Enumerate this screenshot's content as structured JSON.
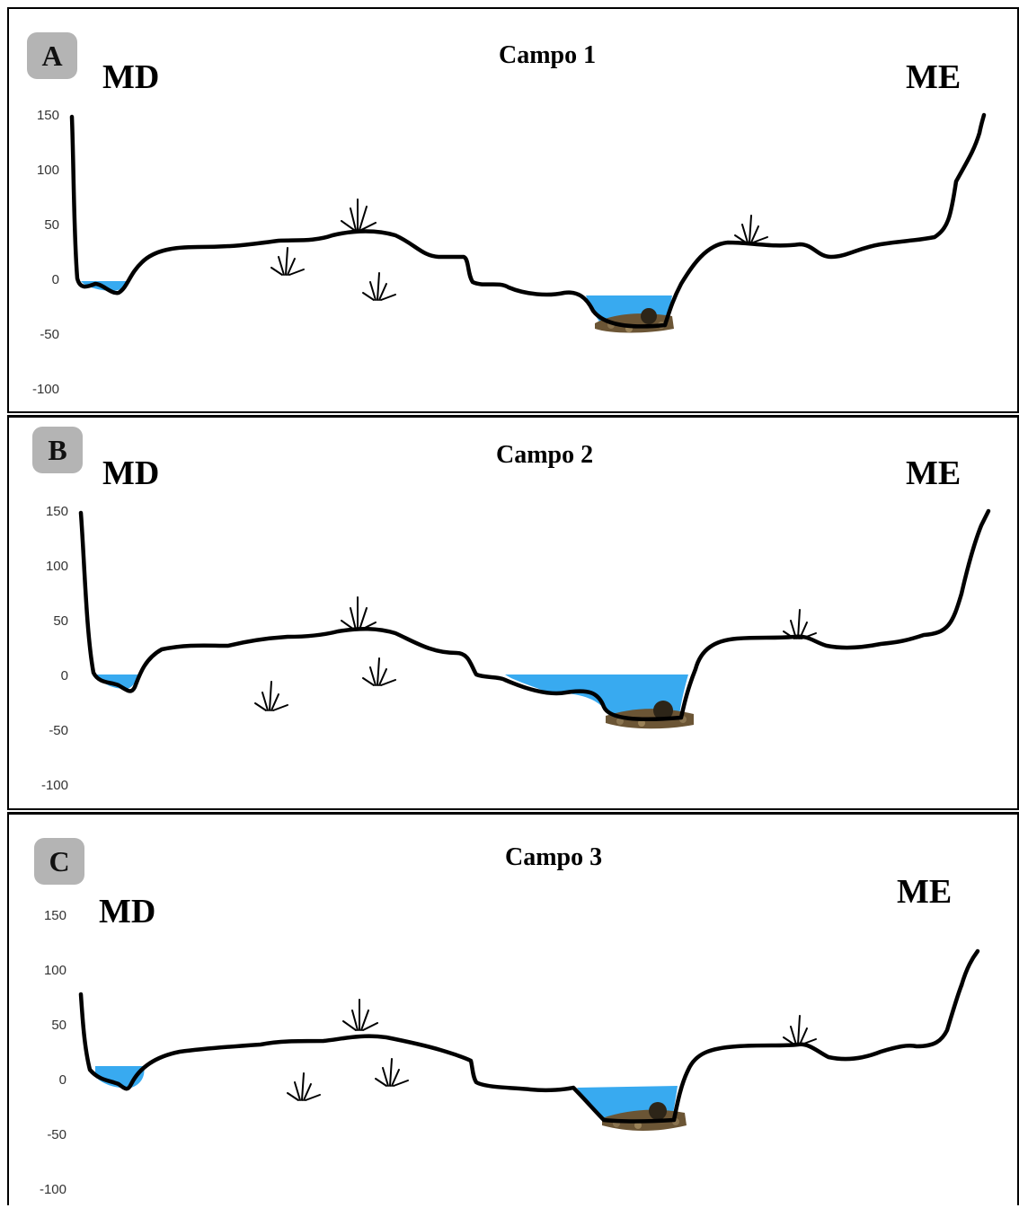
{
  "panels": [
    {
      "letter": "A",
      "title": "Campo 1",
      "left_bank": "MD",
      "right_bank": "ME",
      "y_ticks": [
        "150",
        "100",
        "50",
        "0",
        "-50",
        "-100"
      ]
    },
    {
      "letter": "B",
      "title": "Campo 2",
      "left_bank": "MD",
      "right_bank": "ME",
      "y_ticks": [
        "150",
        "100",
        "50",
        "0",
        "-50",
        "-100"
      ]
    },
    {
      "letter": "C",
      "title": "Campo 3",
      "left_bank": "MD",
      "right_bank": "ME",
      "y_ticks": [
        "150",
        "100",
        "50",
        "0",
        "-50",
        "-100"
      ]
    }
  ],
  "colors": {
    "terrain": "#000000",
    "water": "#38aaf0",
    "sediment": "#6b5535",
    "badge": "#b4b4b4"
  }
}
